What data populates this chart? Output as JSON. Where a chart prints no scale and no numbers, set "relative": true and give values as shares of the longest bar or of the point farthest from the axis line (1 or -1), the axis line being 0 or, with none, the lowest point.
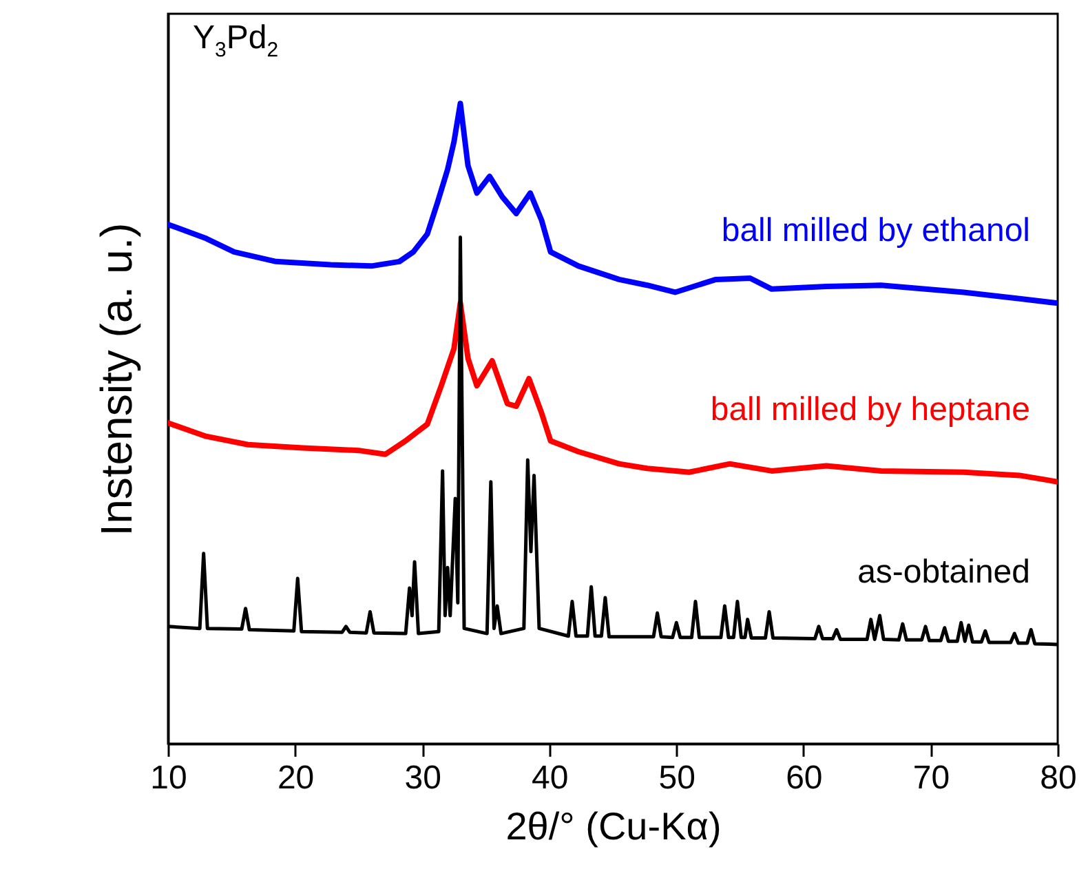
{
  "chart_data": {
    "type": "line",
    "title": "Y$_{3}$Pd$_{2}$",
    "xlabel": "2θ/° (Cu-Kα)",
    "ylabel": "Instensity (a. u.)",
    "relative": true,
    "xlim": [
      10,
      80
    ],
    "xticks": [
      10,
      20,
      30,
      40,
      50,
      60,
      70,
      80
    ],
    "grid": false,
    "line_style": "solid",
    "marker": "none",
    "series": [
      {
        "name": "ball milled by ethanol",
        "color": "#0000ff",
        "x": [
          10,
          13,
          15.2,
          18.5,
          22.8,
          26,
          28.2,
          29.3,
          30.4,
          31.2,
          32,
          32.5,
          33,
          33.6,
          34.3,
          35.3,
          36.3,
          37.4,
          38.5,
          39.4,
          40.1,
          42.3,
          45.5,
          47.7,
          49.9,
          53.1,
          55.8,
          57.5,
          61.8,
          66.1,
          72.6,
          77,
          80
        ],
        "values": [
          0.811,
          0.789,
          0.768,
          0.753,
          0.748,
          0.746,
          0.753,
          0.768,
          0.796,
          0.845,
          0.897,
          0.94,
          1.0,
          0.903,
          0.86,
          0.886,
          0.854,
          0.828,
          0.86,
          0.817,
          0.768,
          0.746,
          0.725,
          0.716,
          0.705,
          0.725,
          0.727,
          0.71,
          0.714,
          0.716,
          0.705,
          0.695,
          0.688
        ]
      },
      {
        "name": "ball milled by heptane",
        "color": "#ff0000",
        "x": [
          10,
          13,
          16.3,
          20.6,
          25,
          27.1,
          28.7,
          30.4,
          31.5,
          32.5,
          33,
          33.6,
          34.3,
          35.5,
          36.7,
          37.4,
          38.4,
          39.4,
          40.1,
          42.3,
          45.5,
          47.7,
          51,
          54.2,
          57.5,
          61.8,
          66.1,
          72.6,
          77,
          80
        ],
        "values": [
          0.501,
          0.48,
          0.467,
          0.462,
          0.458,
          0.452,
          0.473,
          0.499,
          0.559,
          0.617,
          0.688,
          0.602,
          0.559,
          0.598,
          0.531,
          0.527,
          0.57,
          0.516,
          0.473,
          0.456,
          0.437,
          0.43,
          0.424,
          0.437,
          0.426,
          0.434,
          0.426,
          0.424,
          0.419,
          0.409
        ]
      },
      {
        "name": "as-obtained",
        "color": "#000000",
        "x": [
          10,
          12.5,
          12.8,
          13.1,
          15.8,
          16.1,
          16.4,
          19.9,
          20.2,
          20.5,
          23.7,
          24,
          24.3,
          25.6,
          25.9,
          26.2,
          28.7,
          29,
          29.2,
          29.4,
          29.7,
          31.3,
          31.6,
          31.8,
          32,
          32.2,
          32.6,
          32.8,
          33,
          33.3,
          35.1,
          35.4,
          35.65,
          35.9,
          36.2,
          38,
          38.3,
          38.55,
          38.8,
          39.2,
          41.5,
          41.8,
          42.1,
          43,
          43.3,
          43.6,
          44.1,
          44.4,
          44.7,
          48.2,
          48.5,
          48.8,
          49.7,
          50,
          50.3,
          51.2,
          51.5,
          51.8,
          53.5,
          53.8,
          54.1,
          54.5,
          54.8,
          55.1,
          55.4,
          55.6,
          55.9,
          57,
          57.3,
          57.6,
          60.9,
          61.2,
          61.5,
          62.3,
          62.6,
          62.9,
          65,
          65.3,
          65.6,
          66,
          66.3,
          67.5,
          67.8,
          68.1,
          69.3,
          69.6,
          69.9,
          70.8,
          71.1,
          71.4,
          72.1,
          72.4,
          72.7,
          73,
          73.3,
          74,
          74.3,
          74.6,
          76.3,
          76.6,
          76.9,
          77.6,
          77.9,
          78.2,
          80
        ],
        "values": [
          0.183,
          0.18,
          0.297,
          0.18,
          0.179,
          0.211,
          0.178,
          0.176,
          0.258,
          0.175,
          0.174,
          0.183,
          0.174,
          0.173,
          0.206,
          0.173,
          0.172,
          0.243,
          0.2,
          0.284,
          0.172,
          0.175,
          0.426,
          0.2,
          0.275,
          0.2,
          0.383,
          0.22,
          0.791,
          0.18,
          0.172,
          0.409,
          0.18,
          0.215,
          0.172,
          0.18,
          0.443,
          0.3,
          0.419,
          0.18,
          0.168,
          0.222,
          0.168,
          0.168,
          0.245,
          0.168,
          0.168,
          0.228,
          0.167,
          0.167,
          0.204,
          0.167,
          0.166,
          0.189,
          0.166,
          0.166,
          0.222,
          0.166,
          0.166,
          0.215,
          0.166,
          0.166,
          0.222,
          0.166,
          0.166,
          0.194,
          0.165,
          0.165,
          0.206,
          0.165,
          0.164,
          0.183,
          0.164,
          0.164,
          0.178,
          0.163,
          0.163,
          0.194,
          0.163,
          0.2,
          0.163,
          0.162,
          0.187,
          0.162,
          0.162,
          0.183,
          0.161,
          0.161,
          0.181,
          0.16,
          0.16,
          0.189,
          0.16,
          0.185,
          0.159,
          0.159,
          0.176,
          0.158,
          0.158,
          0.172,
          0.157,
          0.157,
          0.178,
          0.156,
          0.155
        ]
      }
    ]
  }
}
